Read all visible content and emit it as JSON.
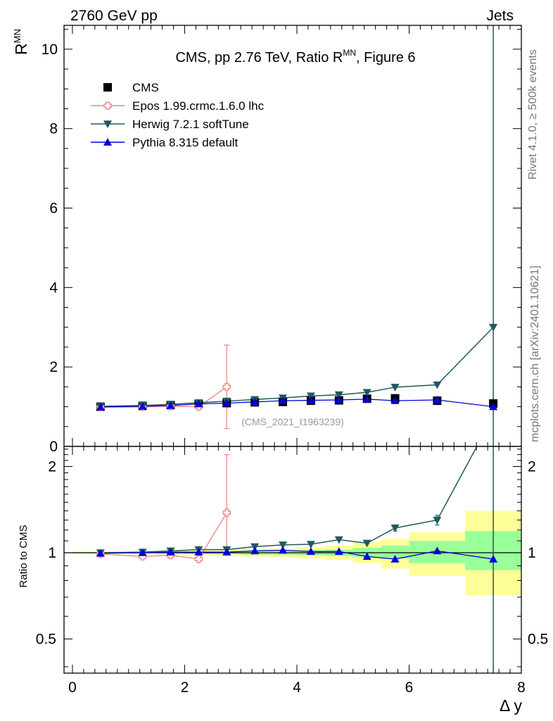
{
  "header": {
    "left": "2760 GeV pp",
    "right": "Jets"
  },
  "side": {
    "rivet": "Rivet 4.1.0, ≥ 500k events",
    "mcplots": "mcplots.cern.ch [arXiv:2401.10621]"
  },
  "chart_data": {
    "type": "line",
    "title_main": "CMS, pp 2.76 TeV, Ratio R",
    "title_sup": "MN",
    "title_tail": ", Figure 6",
    "analysis_id": "(CMS_2021_I1963239)",
    "xlabel": "Δ y",
    "ylabel_main": "R",
    "ylabel_sup": "MN",
    "ylabel_ratio": "Ratio to CMS",
    "xlim": [
      -0.15,
      8.0
    ],
    "ylim_main": [
      0,
      10.6
    ],
    "ylim_ratio": [
      0.38,
      2.35
    ],
    "x_ticks": [
      "0",
      "2",
      "4",
      "6",
      "8"
    ],
    "y_ticks_main": [
      "0",
      "2",
      "4",
      "6",
      "8",
      "10"
    ],
    "y_ticks_ratio": [
      "0.5",
      "1",
      "2"
    ],
    "x": [
      0.5,
      1.25,
      1.75,
      2.25,
      2.75,
      3.25,
      3.75,
      4.25,
      4.75,
      5.25,
      5.75,
      6.5,
      7.5
    ],
    "bin_edges": [
      0.0,
      1.0,
      1.5,
      2.0,
      2.5,
      3.0,
      3.5,
      4.0,
      4.5,
      5.0,
      5.5,
      6.0,
      7.0,
      8.0
    ],
    "band_inner_lo": [
      0.995,
      0.995,
      0.993,
      0.99,
      0.99,
      0.985,
      0.985,
      0.98,
      0.975,
      0.965,
      0.955,
      0.92,
      0.87
    ],
    "band_inner_hi": [
      1.005,
      1.005,
      1.007,
      1.01,
      1.01,
      1.015,
      1.015,
      1.02,
      1.025,
      1.04,
      1.06,
      1.1,
      1.19
    ],
    "band_outer_lo": [
      0.99,
      0.99,
      0.985,
      0.98,
      0.975,
      0.97,
      0.965,
      0.955,
      0.945,
      0.92,
      0.88,
      0.83,
      0.71
    ],
    "band_outer_hi": [
      1.01,
      1.01,
      1.015,
      1.02,
      1.025,
      1.03,
      1.035,
      1.045,
      1.06,
      1.09,
      1.12,
      1.18,
      1.4
    ],
    "series": [
      {
        "name": "CMS",
        "color": "#000000",
        "marker": "square",
        "values": [
          1.0,
          1.02,
          1.04,
          1.07,
          1.09,
          1.11,
          1.12,
          1.15,
          1.16,
          1.2,
          1.21,
          1.15,
          1.08
        ]
      },
      {
        "name": "Epos 1.99.crmc.1.6.0 lhc",
        "color": "#f08080",
        "marker": "cross",
        "x": [
          0.5,
          1.25,
          1.75,
          2.25,
          2.75
        ],
        "values": [
          0.99,
          0.99,
          1.01,
          1.0,
          1.5
        ],
        "errors": [
          0.0,
          0.0,
          0.0,
          0.0,
          1.05
        ],
        "ratio": [
          0.99,
          0.97,
          0.98,
          0.95,
          1.38
        ],
        "ratio_err_lo": [
          0,
          0,
          0,
          0,
          1.0
        ],
        "ratio_err_hi": [
          0,
          0,
          0,
          0,
          2.2
        ]
      },
      {
        "name": "Herwig 7.2.1 softTune",
        "color": "#1f5a5f",
        "marker": "triangle-down",
        "values": [
          1.01,
          1.03,
          1.06,
          1.1,
          1.14,
          1.18,
          1.22,
          1.27,
          1.3,
          1.36,
          1.49,
          1.55,
          3.0
        ],
        "errors": [
          0,
          0,
          0,
          0,
          0,
          0,
          0,
          0,
          0,
          0,
          0,
          0,
          20
        ],
        "ratio": [
          1.0,
          1.005,
          1.015,
          1.025,
          1.025,
          1.05,
          1.065,
          1.07,
          1.11,
          1.08,
          1.22,
          1.3,
          3.0
        ],
        "ratio_err": [
          0,
          0,
          0,
          0,
          0,
          0,
          0,
          0,
          0,
          0,
          0.03,
          0.05,
          0
        ]
      },
      {
        "name": "Pythia 8.315 default",
        "color": "#0000dd",
        "marker": "triangle-up",
        "values": [
          0.99,
          1.01,
          1.03,
          1.07,
          1.09,
          1.12,
          1.15,
          1.16,
          1.17,
          1.19,
          1.15,
          1.17,
          1.0
        ],
        "ratio": [
          0.995,
          1.0,
          1.005,
          1.005,
          1.005,
          1.015,
          1.02,
          1.01,
          1.01,
          0.97,
          0.95,
          1.015,
          0.95
        ],
        "ratio_err": [
          0,
          0,
          0,
          0,
          0,
          0,
          0,
          0,
          0,
          0,
          0,
          0.02,
          0
        ]
      }
    ]
  }
}
